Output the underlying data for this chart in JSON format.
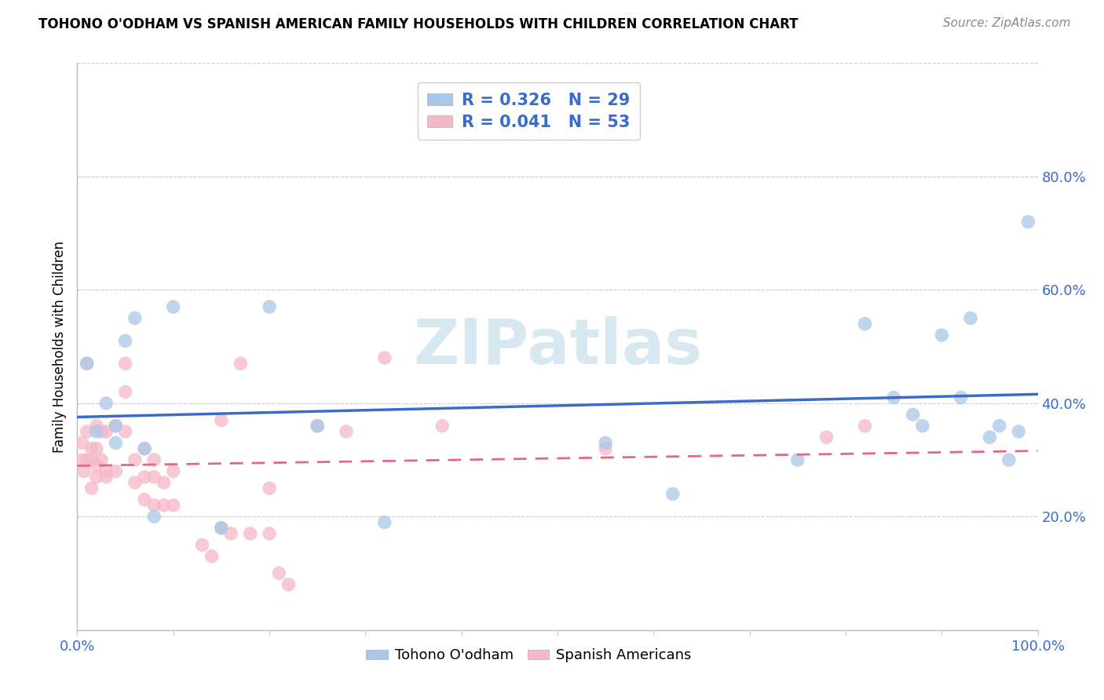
{
  "title": "TOHONO O'ODHAM VS SPANISH AMERICAN FAMILY HOUSEHOLDS WITH CHILDREN CORRELATION CHART",
  "source": "Source: ZipAtlas.com",
  "ylabel": "Family Households with Children",
  "xlim": [
    0,
    1.0
  ],
  "ylim": [
    0,
    1.0
  ],
  "blue_R": 0.326,
  "blue_N": 29,
  "pink_R": 0.041,
  "pink_N": 53,
  "blue_color": "#a8c8e8",
  "pink_color": "#f4b8c8",
  "blue_line_color": "#3a6bc9",
  "pink_line_color": "#e06888",
  "watermark": "ZIPatlas",
  "watermark_color": "#d8e8f0",
  "legend_label_blue": "Tohono O'odham",
  "legend_label_pink": "Spanish Americans",
  "stat_text_color": "#3a6bc9",
  "ytick_color": "#3a6bc9",
  "xtick_color": "#3a6bc9",
  "title_fontsize": 12,
  "source_fontsize": 11,
  "blue_scatter_x": [
    0.01,
    0.02,
    0.03,
    0.04,
    0.04,
    0.05,
    0.06,
    0.07,
    0.08,
    0.1,
    0.15,
    0.2,
    0.25,
    0.32,
    0.55,
    0.62,
    0.75,
    0.82,
    0.85,
    0.87,
    0.88,
    0.9,
    0.92,
    0.93,
    0.95,
    0.96,
    0.97,
    0.98,
    0.99
  ],
  "blue_scatter_y": [
    0.47,
    0.35,
    0.4,
    0.36,
    0.33,
    0.51,
    0.55,
    0.32,
    0.2,
    0.57,
    0.18,
    0.57,
    0.36,
    0.19,
    0.33,
    0.24,
    0.3,
    0.54,
    0.41,
    0.38,
    0.36,
    0.52,
    0.41,
    0.55,
    0.34,
    0.36,
    0.3,
    0.35,
    0.72
  ],
  "pink_scatter_x": [
    0.005,
    0.005,
    0.007,
    0.01,
    0.01,
    0.01,
    0.015,
    0.015,
    0.015,
    0.02,
    0.02,
    0.02,
    0.02,
    0.025,
    0.025,
    0.03,
    0.03,
    0.03,
    0.04,
    0.04,
    0.05,
    0.05,
    0.05,
    0.06,
    0.06,
    0.07,
    0.07,
    0.07,
    0.08,
    0.08,
    0.08,
    0.09,
    0.09,
    0.1,
    0.1,
    0.13,
    0.14,
    0.15,
    0.15,
    0.16,
    0.17,
    0.18,
    0.2,
    0.2,
    0.21,
    0.22,
    0.25,
    0.28,
    0.32,
    0.38,
    0.55,
    0.78,
    0.82
  ],
  "pink_scatter_y": [
    0.3,
    0.33,
    0.28,
    0.47,
    0.35,
    0.3,
    0.3,
    0.32,
    0.25,
    0.36,
    0.32,
    0.29,
    0.27,
    0.35,
    0.3,
    0.35,
    0.28,
    0.27,
    0.28,
    0.36,
    0.47,
    0.42,
    0.35,
    0.3,
    0.26,
    0.32,
    0.27,
    0.23,
    0.3,
    0.27,
    0.22,
    0.26,
    0.22,
    0.28,
    0.22,
    0.15,
    0.13,
    0.37,
    0.18,
    0.17,
    0.47,
    0.17,
    0.17,
    0.25,
    0.1,
    0.08,
    0.36,
    0.35,
    0.48,
    0.36,
    0.32,
    0.34,
    0.36
  ]
}
